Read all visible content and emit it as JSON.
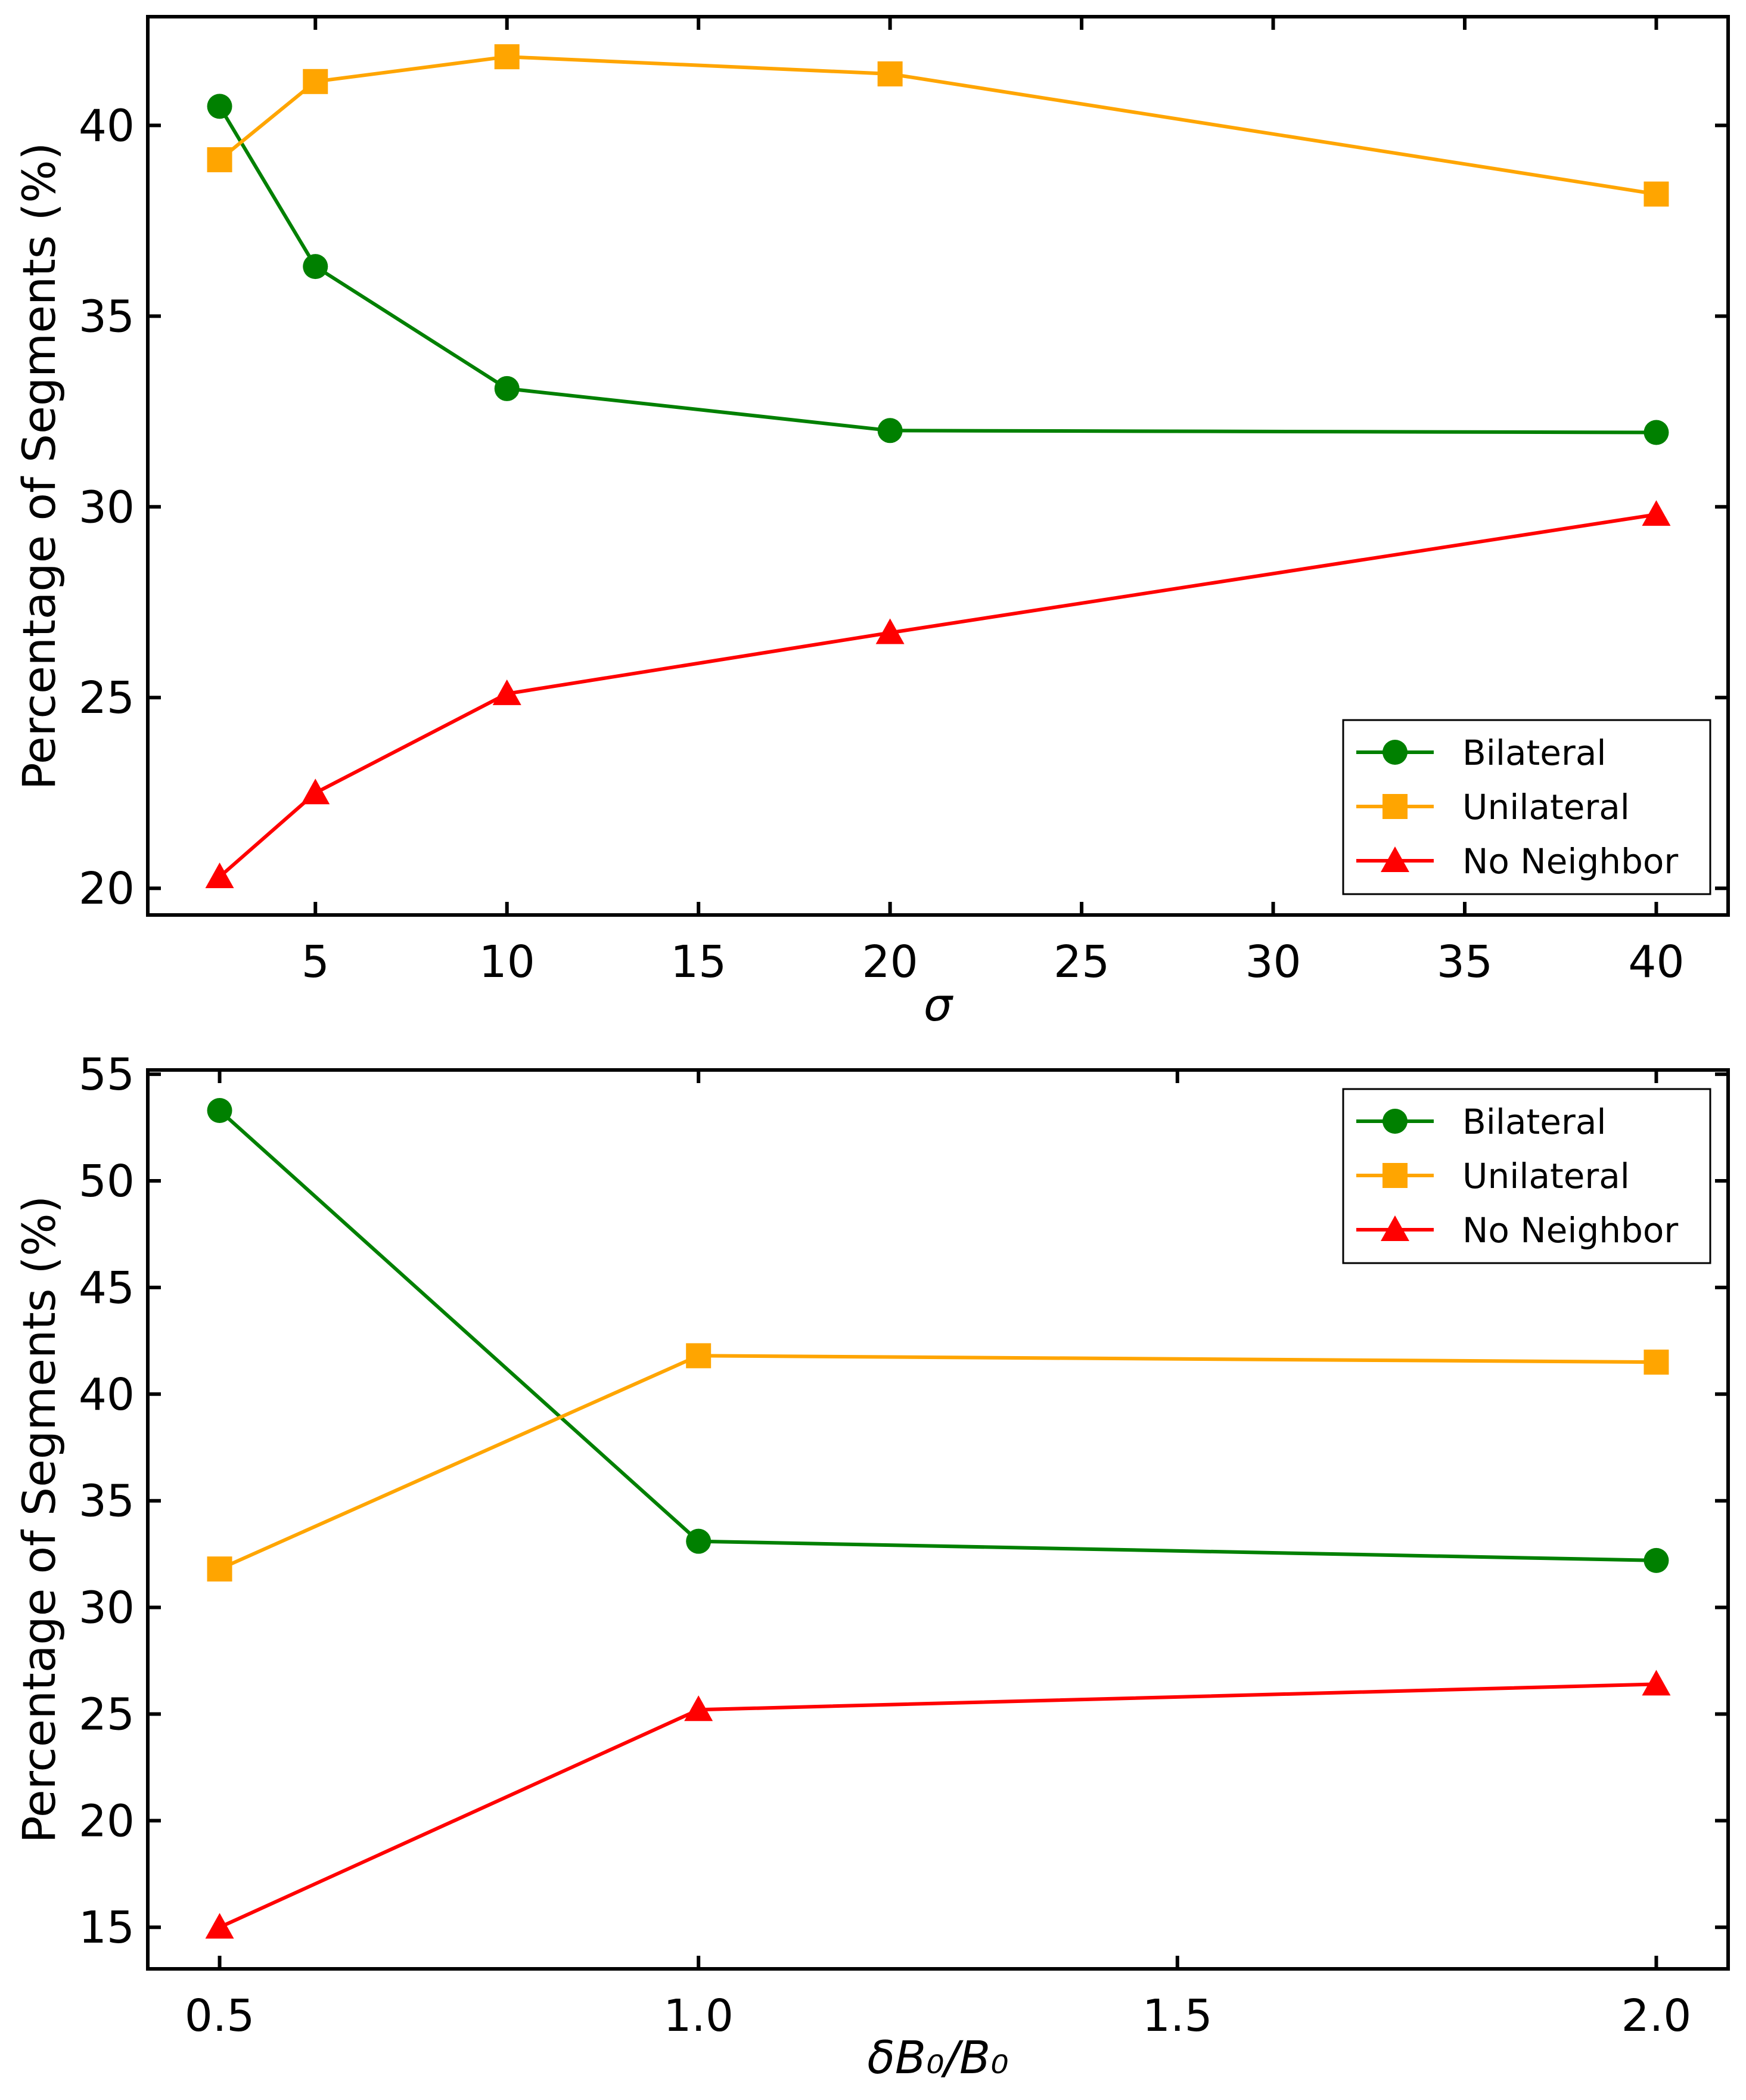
{
  "chart_data": [
    {
      "type": "line",
      "title": "",
      "xlabel": "σ",
      "ylabel": "Percentage of Segments (%)",
      "xlim": [
        0.625,
        41.875
      ],
      "ylim": [
        19.3,
        42.85
      ],
      "xticks": [
        5,
        10,
        15,
        20,
        25,
        30,
        35,
        40
      ],
      "xtick_labels": [
        "5",
        "10",
        "15",
        "20",
        "25",
        "30",
        "35",
        "40"
      ],
      "yticks": [
        20,
        25,
        30,
        35,
        40
      ],
      "ytick_labels": [
        "20",
        "25",
        "30",
        "35",
        "40"
      ],
      "grid": false,
      "legend_position": "lower-right",
      "x": [
        2.5,
        5,
        10,
        20,
        40
      ],
      "series": [
        {
          "name": "Bilateral",
          "color": "#008000",
          "marker": "circle",
          "values": [
            40.5,
            36.3,
            33.1,
            32.0,
            31.95
          ]
        },
        {
          "name": "Unilateral",
          "color": "#FFA500",
          "marker": "square",
          "values": [
            39.1,
            41.15,
            41.8,
            41.35,
            38.2
          ]
        },
        {
          "name": "No Neighbor",
          "color": "#FF0000",
          "marker": "triangle",
          "values": [
            20.3,
            22.5,
            25.1,
            26.7,
            29.8
          ]
        }
      ]
    },
    {
      "type": "line",
      "title": "",
      "xlabel": "δB₀/B₀",
      "ylabel": "Percentage of Segments (%)",
      "xlim": [
        0.425,
        2.075
      ],
      "ylim": [
        13.05,
        55.2
      ],
      "xticks": [
        0.5,
        1.0,
        1.5,
        2.0
      ],
      "xtick_labels": [
        "0.5",
        "1.0",
        "1.5",
        "2.0"
      ],
      "yticks": [
        15,
        20,
        25,
        30,
        35,
        40,
        45,
        50,
        55
      ],
      "ytick_labels": [
        "15",
        "20",
        "25",
        "30",
        "35",
        "40",
        "45",
        "50",
        "55"
      ],
      "grid": false,
      "legend_position": "upper-right",
      "x": [
        0.5,
        1.0,
        2.0
      ],
      "series": [
        {
          "name": "Bilateral",
          "color": "#008000",
          "marker": "circle",
          "values": [
            53.3,
            33.1,
            32.2
          ]
        },
        {
          "name": "Unilateral",
          "color": "#FFA500",
          "marker": "square",
          "values": [
            31.8,
            41.8,
            41.5
          ]
        },
        {
          "name": "No Neighbor",
          "color": "#FF0000",
          "marker": "triangle",
          "values": [
            15.0,
            25.2,
            26.4
          ]
        }
      ]
    }
  ]
}
